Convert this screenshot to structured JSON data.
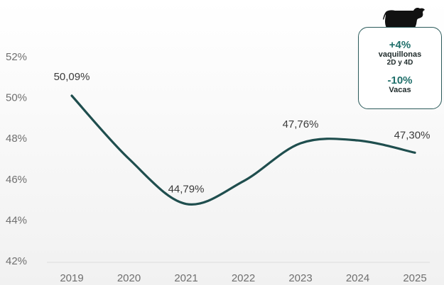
{
  "chart_data": {
    "type": "line",
    "categories": [
      "2019",
      "2020",
      "2021",
      "2022",
      "2023",
      "2024",
      "2025"
    ],
    "values": [
      50.09,
      47.0,
      44.79,
      45.9,
      47.76,
      47.9,
      47.3
    ],
    "data_labels": [
      {
        "category": "2019",
        "text": "50,09%"
      },
      {
        "category": "2021",
        "text": "44,79%"
      },
      {
        "category": "2023",
        "text": "47,76%"
      },
      {
        "category": "2025",
        "text": "47,30%"
      }
    ],
    "y_ticks": [
      "42%",
      "44%",
      "46%",
      "48%",
      "50%",
      "52%"
    ],
    "y_tick_values": [
      42,
      44,
      46,
      48,
      50,
      52
    ],
    "ylim": [
      42,
      52
    ],
    "grid": false,
    "line_color": "#1f4e4e"
  },
  "callout": {
    "icon": "cow-icon",
    "item1_pct": "+4%",
    "item1_label": "vaquillonas",
    "item1_sub": "2D y 4D",
    "item2_pct": "-10%",
    "item2_label": "Vacas",
    "accent_color": "#1f6f6a",
    "border_color": "#2b5a5a"
  }
}
